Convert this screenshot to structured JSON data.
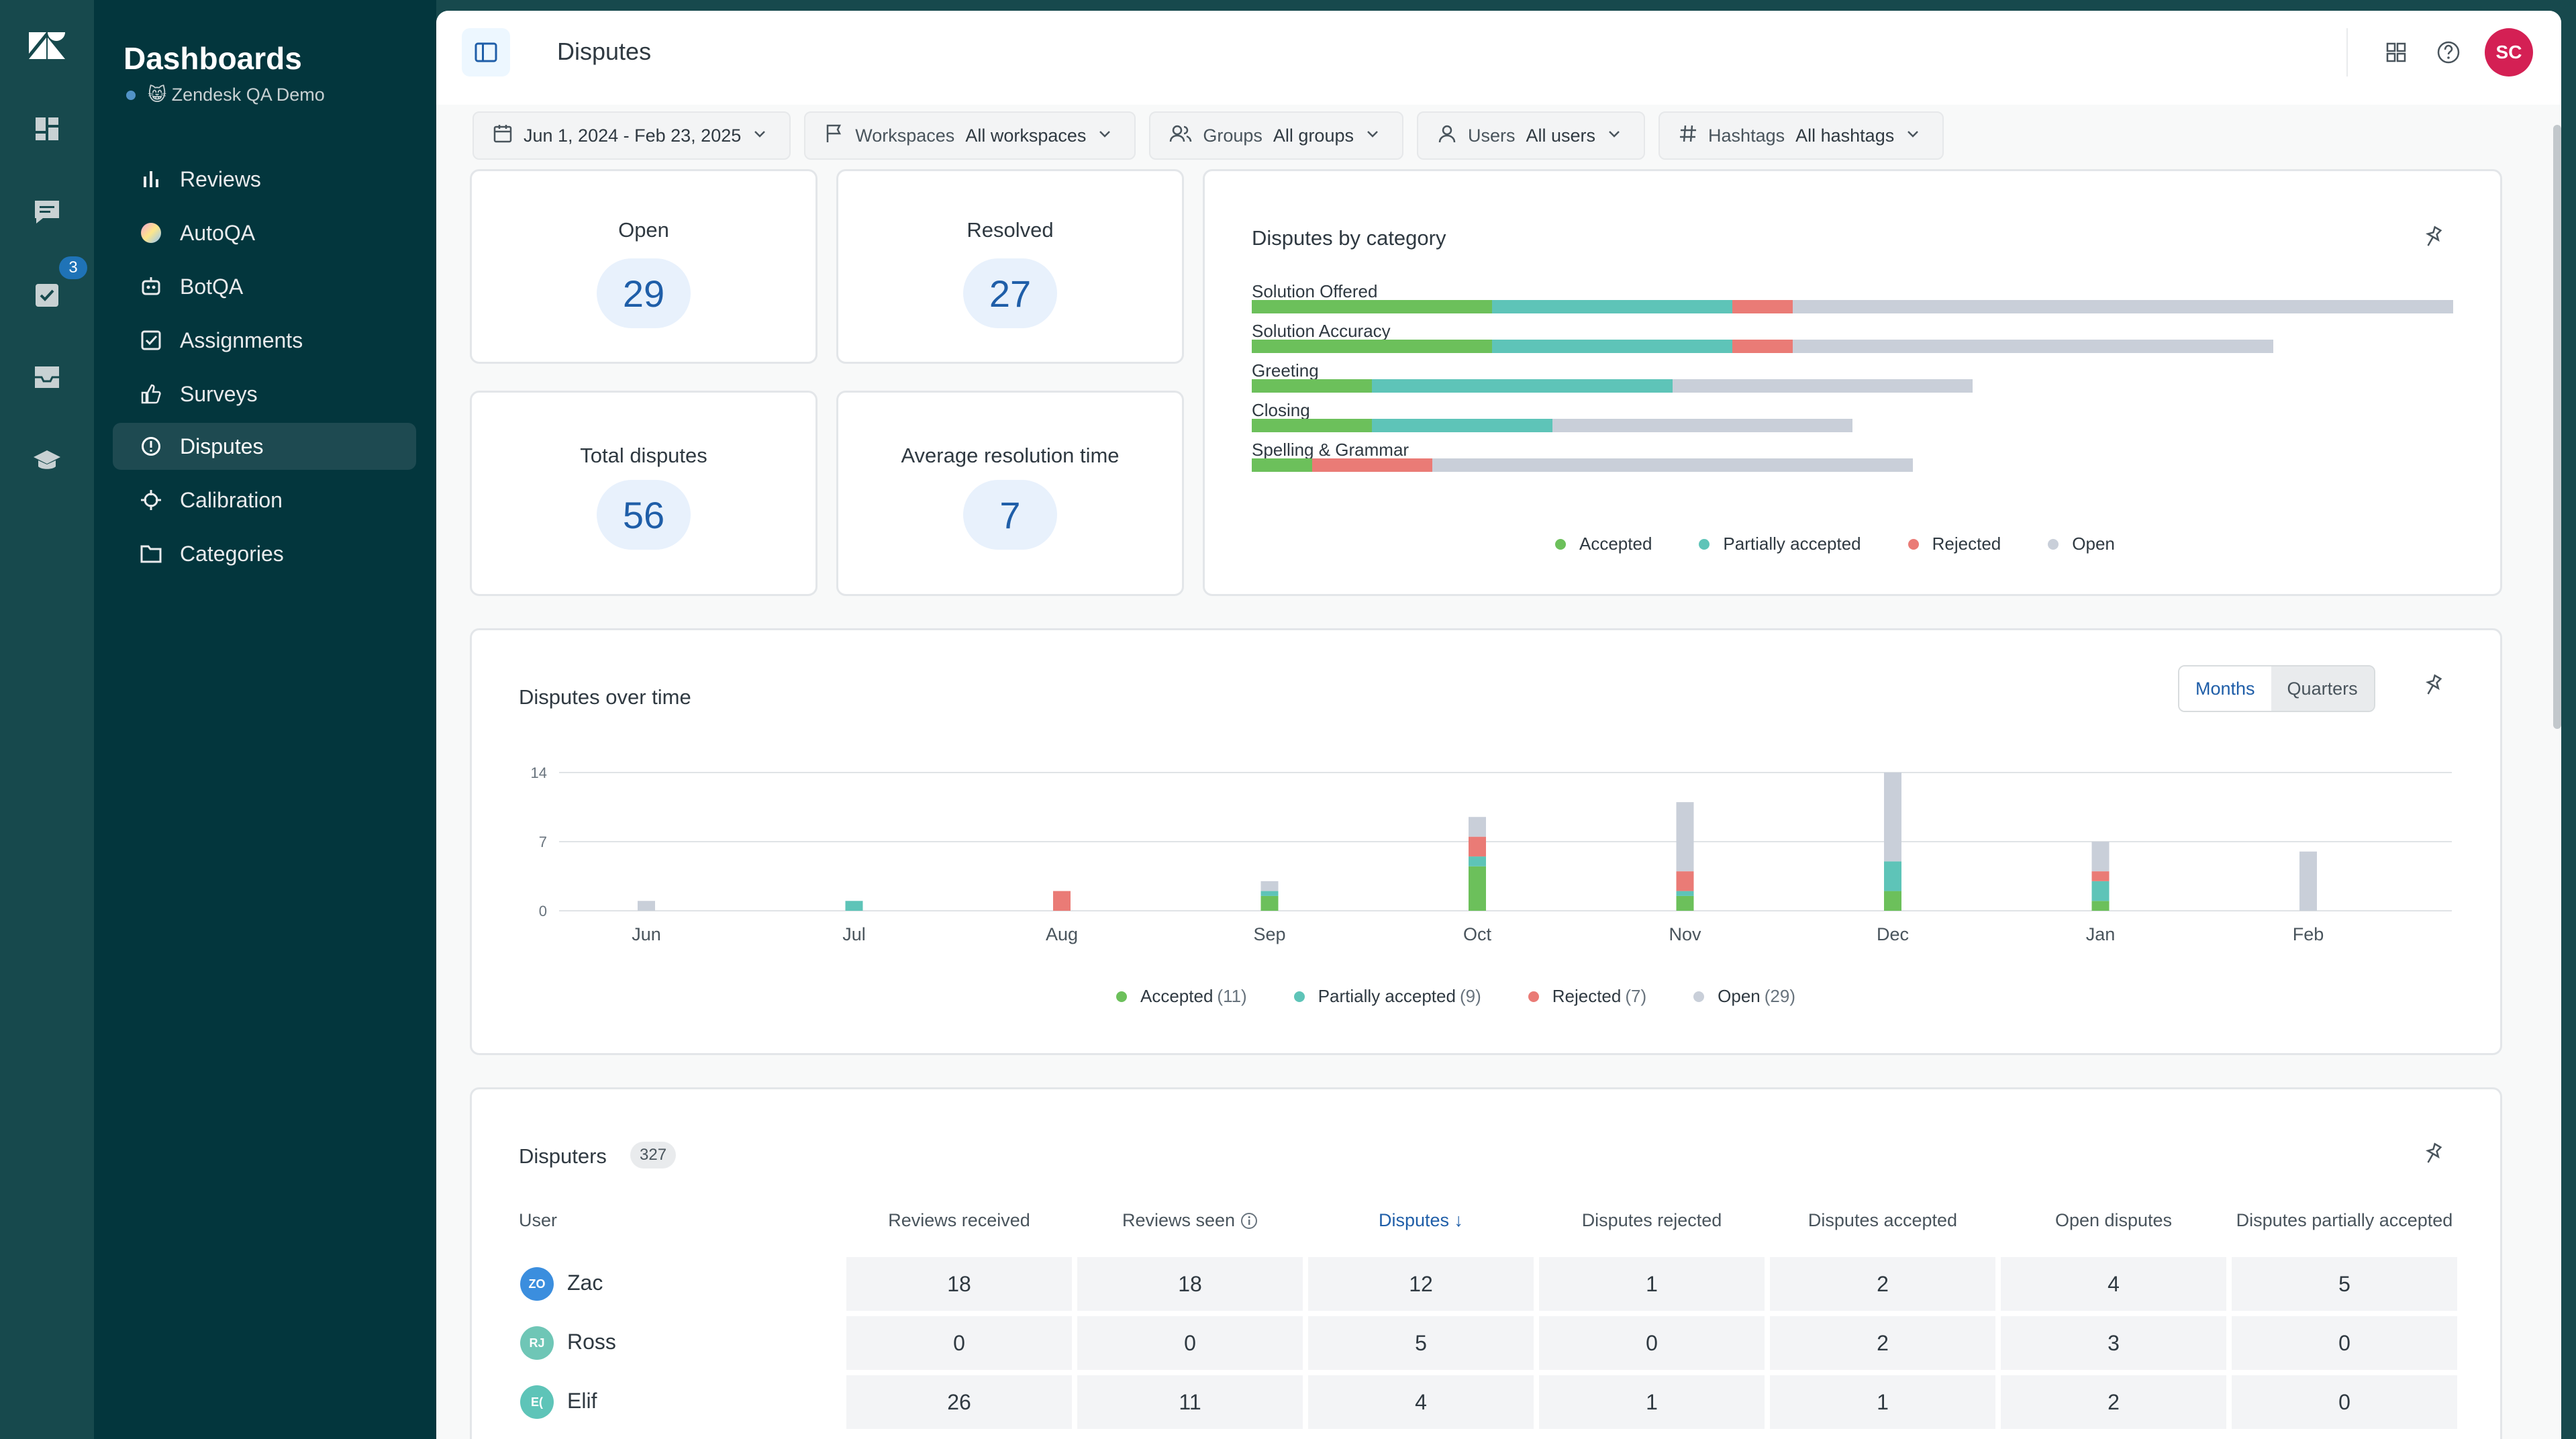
{
  "sidebar": {
    "title": "Dashboards",
    "workspace": "😸 Zendesk QA Demo",
    "items": [
      {
        "label": "Reviews",
        "icon": "bar-chart-icon"
      },
      {
        "label": "AutoQA",
        "icon": "autoqa-icon"
      },
      {
        "label": "BotQA",
        "icon": "bot-icon"
      },
      {
        "label": "Assignments",
        "icon": "checkbox-icon"
      },
      {
        "label": "Surveys",
        "icon": "thumbs-up-icon"
      },
      {
        "label": "Disputes",
        "icon": "alert-circle-icon"
      },
      {
        "label": "Calibration",
        "icon": "crosshair-icon"
      },
      {
        "label": "Categories",
        "icon": "folder-icon"
      }
    ]
  },
  "rail": {
    "badge": "3"
  },
  "header": {
    "title": "Disputes",
    "avatar": "SC"
  },
  "filters": [
    {
      "label": "",
      "value": "Jun 1, 2024 - Feb 23, 2025",
      "icon": "calendar-icon"
    },
    {
      "label": "Workspaces",
      "value": "All workspaces",
      "icon": "flag-icon"
    },
    {
      "label": "Groups",
      "value": "All groups",
      "icon": "groups-icon"
    },
    {
      "label": "Users",
      "value": "All users",
      "icon": "user-icon"
    },
    {
      "label": "Hashtags",
      "value": "All hashtags",
      "icon": "hashtag-icon"
    }
  ],
  "stats": {
    "open": {
      "label": "Open",
      "value": "29"
    },
    "resolved": {
      "label": "Resolved",
      "value": "27"
    },
    "total": {
      "label": "Total disputes",
      "value": "56"
    },
    "avg": {
      "label": "Average resolution time",
      "value": "7"
    }
  },
  "colors": {
    "accepted": "#6cc05b",
    "partial": "#5ec4b8",
    "rejected": "#ea7b76",
    "open": "#c9cfd9"
  },
  "category_chart": {
    "title": "Disputes by category",
    "legend": [
      "Accepted",
      "Partially accepted",
      "Rejected",
      "Open"
    ]
  },
  "time_chart": {
    "title": "Disputes over time",
    "toggle": [
      "Months",
      "Quarters"
    ],
    "legend": [
      {
        "label": "Accepted",
        "count": "(11)"
      },
      {
        "label": "Partially accepted",
        "count": "(9)"
      },
      {
        "label": "Rejected",
        "count": "(7)"
      },
      {
        "label": "Open",
        "count": "(29)"
      }
    ]
  },
  "chart_data": [
    {
      "type": "bar",
      "orientation": "horizontal-stacked",
      "title": "Disputes by category",
      "categories": [
        "Solution Offered",
        "Solution Accuracy",
        "Greeting",
        "Closing",
        "Spelling & Grammar"
      ],
      "series": [
        {
          "name": "Accepted",
          "values": [
            4,
            4,
            2,
            2,
            1
          ]
        },
        {
          "name": "Partially accepted",
          "values": [
            4,
            4,
            5,
            3,
            0
          ]
        },
        {
          "name": "Rejected",
          "values": [
            1,
            1,
            0,
            0,
            2
          ]
        },
        {
          "name": "Open",
          "values": [
            11,
            8,
            5,
            5,
            8
          ]
        }
      ],
      "legend_position": "bottom"
    },
    {
      "type": "bar",
      "orientation": "vertical-stacked",
      "title": "Disputes over time",
      "categories": [
        "Jun",
        "Jul",
        "Aug",
        "Sep",
        "Oct",
        "Nov",
        "Dec",
        "Jan",
        "Feb"
      ],
      "y_ticks": [
        "0",
        "7",
        "14"
      ],
      "ylim": [
        0,
        14
      ],
      "grid": true,
      "series": [
        {
          "name": "Accepted",
          "values": [
            0,
            0,
            0,
            1.5,
            4.5,
            1.5,
            2,
            1,
            0
          ]
        },
        {
          "name": "Partially accepted",
          "values": [
            0,
            1,
            0,
            0.5,
            1,
            0.5,
            3,
            2,
            0
          ]
        },
        {
          "name": "Rejected",
          "values": [
            0,
            0,
            2,
            0,
            2,
            2,
            0,
            1,
            0
          ]
        },
        {
          "name": "Open",
          "values": [
            1,
            0,
            0,
            1,
            2,
            7,
            9,
            3,
            6
          ]
        }
      ],
      "legend_position": "bottom"
    }
  ],
  "disputers": {
    "title": "Disputers",
    "count": "327",
    "columns": [
      "User",
      "Reviews received",
      "Reviews seen",
      "Disputes ↓",
      "Disputes rejected",
      "Disputes accepted",
      "Open disputes",
      "Disputes partially accepted"
    ],
    "rows": [
      {
        "initials": "ZO",
        "name": "Zac",
        "color": "#3b8ede",
        "cells": [
          "18",
          "18",
          "12",
          "1",
          "2",
          "4",
          "5"
        ]
      },
      {
        "initials": "RJ",
        "name": "Ross",
        "color": "#6fc6b6",
        "cells": [
          "0",
          "0",
          "5",
          "0",
          "2",
          "3",
          "0"
        ]
      },
      {
        "initials": "E(",
        "name": "Elif",
        "color": "#5ec4b8",
        "cells": [
          "26",
          "11",
          "4",
          "1",
          "1",
          "2",
          "0"
        ]
      }
    ]
  }
}
